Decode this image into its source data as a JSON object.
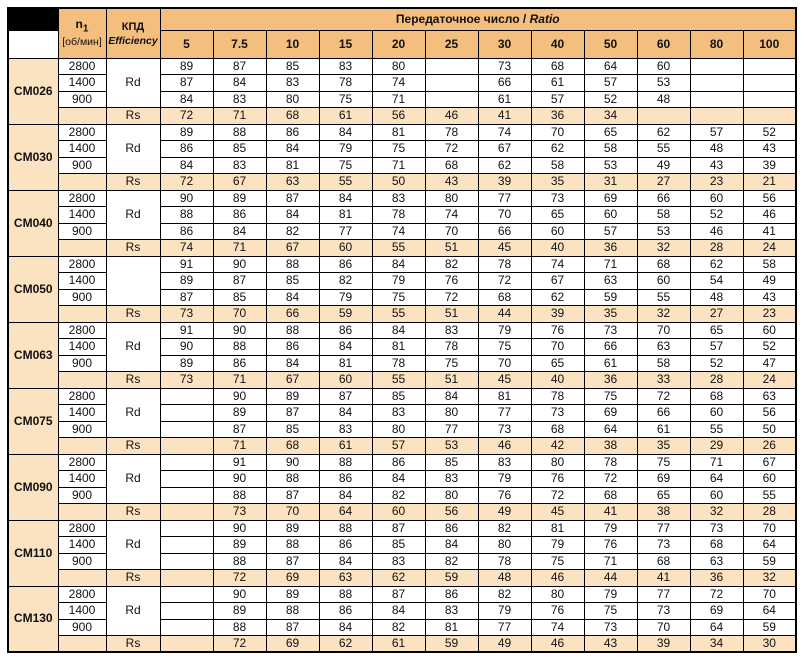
{
  "header": {
    "n1_main": "n",
    "n1_sub": "1",
    "n1_unit": "[об/мин]",
    "efficiency_ru": "КПД",
    "efficiency_en": "Efficiency",
    "ratio_title_ru": "Передаточное число / ",
    "ratio_title_en": "Ratio",
    "ratios": [
      "5",
      "7.5",
      "10",
      "15",
      "20",
      "25",
      "30",
      "40",
      "50",
      "60",
      "80",
      "100"
    ]
  },
  "colors": {
    "header_orange": "#F4BE7F",
    "light_orange": "#FBE2C1",
    "border": "#000000",
    "corner_fill": "#000000"
  },
  "speeds": [
    "2800",
    "1400",
    "900"
  ],
  "rs_label": "Rs",
  "blocks": [
    {
      "model": "CM026",
      "rd_label": "Rd",
      "rd": [
        [
          "89",
          "87",
          "85",
          "83",
          "80",
          "",
          "73",
          "68",
          "64",
          "60",
          "",
          ""
        ],
        [
          "87",
          "84",
          "83",
          "78",
          "74",
          "",
          "66",
          "61",
          "57",
          "53",
          "",
          ""
        ],
        [
          "84",
          "83",
          "80",
          "75",
          "71",
          "",
          "61",
          "57",
          "52",
          "48",
          "",
          ""
        ]
      ],
      "rs": [
        "72",
        "71",
        "68",
        "61",
        "56",
        "46",
        "41",
        "36",
        "34",
        "",
        "",
        ""
      ]
    },
    {
      "model": "CM030",
      "rd_label": "Rd",
      "rd": [
        [
          "89",
          "88",
          "86",
          "84",
          "81",
          "78",
          "74",
          "70",
          "65",
          "62",
          "57",
          "52"
        ],
        [
          "86",
          "85",
          "84",
          "79",
          "75",
          "72",
          "67",
          "62",
          "58",
          "55",
          "48",
          "43"
        ],
        [
          "84",
          "83",
          "81",
          "75",
          "71",
          "68",
          "62",
          "58",
          "53",
          "49",
          "43",
          "39"
        ]
      ],
      "rs": [
        "72",
        "67",
        "63",
        "55",
        "50",
        "43",
        "39",
        "35",
        "31",
        "27",
        "23",
        "21"
      ]
    },
    {
      "model": "CM040",
      "rd_label": "Rd",
      "rd": [
        [
          "90",
          "89",
          "87",
          "84",
          "83",
          "80",
          "77",
          "73",
          "69",
          "66",
          "60",
          "56"
        ],
        [
          "88",
          "86",
          "84",
          "81",
          "78",
          "74",
          "70",
          "65",
          "60",
          "58",
          "52",
          "46"
        ],
        [
          "86",
          "84",
          "82",
          "77",
          "74",
          "70",
          "66",
          "60",
          "57",
          "53",
          "46",
          "41"
        ]
      ],
      "rs": [
        "74",
        "71",
        "67",
        "60",
        "55",
        "51",
        "45",
        "40",
        "36",
        "32",
        "28",
        "24"
      ]
    },
    {
      "model": "CM050",
      "rd_label": "",
      "rd": [
        [
          "91",
          "90",
          "88",
          "86",
          "84",
          "82",
          "78",
          "74",
          "71",
          "68",
          "62",
          "58"
        ],
        [
          "89",
          "87",
          "85",
          "82",
          "79",
          "76",
          "72",
          "67",
          "63",
          "60",
          "54",
          "49"
        ],
        [
          "87",
          "85",
          "84",
          "79",
          "75",
          "72",
          "68",
          "62",
          "59",
          "55",
          "48",
          "43"
        ]
      ],
      "rs": [
        "73",
        "70",
        "66",
        "59",
        "55",
        "51",
        "44",
        "39",
        "35",
        "32",
        "27",
        "23"
      ]
    },
    {
      "model": "CM063",
      "rd_label": "Rd",
      "rd": [
        [
          "91",
          "90",
          "88",
          "86",
          "84",
          "83",
          "79",
          "76",
          "73",
          "70",
          "65",
          "60"
        ],
        [
          "90",
          "88",
          "86",
          "84",
          "81",
          "78",
          "75",
          "70",
          "66",
          "63",
          "57",
          "52"
        ],
        [
          "89",
          "86",
          "84",
          "81",
          "78",
          "75",
          "70",
          "65",
          "61",
          "58",
          "52",
          "47"
        ]
      ],
      "rs": [
        "73",
        "71",
        "67",
        "60",
        "55",
        "51",
        "45",
        "40",
        "36",
        "33",
        "28",
        "24"
      ]
    },
    {
      "model": "CM075",
      "rd_label": "Rd",
      "rd": [
        [
          "",
          "90",
          "89",
          "87",
          "85",
          "84",
          "81",
          "78",
          "75",
          "72",
          "68",
          "63"
        ],
        [
          "",
          "89",
          "87",
          "84",
          "83",
          "80",
          "77",
          "73",
          "69",
          "66",
          "60",
          "56"
        ],
        [
          "",
          "87",
          "85",
          "83",
          "80",
          "77",
          "73",
          "68",
          "64",
          "61",
          "55",
          "50"
        ]
      ],
      "rs": [
        "",
        "71",
        "68",
        "61",
        "57",
        "53",
        "46",
        "42",
        "38",
        "35",
        "29",
        "26"
      ]
    },
    {
      "model": "CM090",
      "rd_label": "Rd",
      "rd": [
        [
          "",
          "91",
          "90",
          "88",
          "86",
          "85",
          "83",
          "80",
          "78",
          "75",
          "71",
          "67"
        ],
        [
          "",
          "90",
          "88",
          "86",
          "84",
          "83",
          "79",
          "76",
          "72",
          "69",
          "64",
          "60"
        ],
        [
          "",
          "88",
          "87",
          "84",
          "82",
          "80",
          "76",
          "72",
          "68",
          "65",
          "60",
          "55"
        ]
      ],
      "rs": [
        "",
        "73",
        "70",
        "64",
        "60",
        "56",
        "49",
        "45",
        "41",
        "38",
        "32",
        "28"
      ]
    },
    {
      "model": "CM110",
      "rd_label": "Rd",
      "rd": [
        [
          "",
          "90",
          "89",
          "88",
          "87",
          "86",
          "82",
          "81",
          "79",
          "77",
          "73",
          "70"
        ],
        [
          "",
          "89",
          "88",
          "86",
          "85",
          "84",
          "80",
          "79",
          "76",
          "73",
          "68",
          "64"
        ],
        [
          "",
          "88",
          "87",
          "84",
          "83",
          "82",
          "78",
          "75",
          "71",
          "68",
          "63",
          "59"
        ]
      ],
      "rs": [
        "",
        "72",
        "69",
        "63",
        "62",
        "59",
        "48",
        "46",
        "44",
        "41",
        "36",
        "32"
      ]
    },
    {
      "model": "CM130",
      "rd_label": "Rd",
      "rd": [
        [
          "",
          "90",
          "89",
          "88",
          "87",
          "86",
          "82",
          "80",
          "79",
          "77",
          "72",
          "70"
        ],
        [
          "",
          "89",
          "88",
          "86",
          "84",
          "83",
          "79",
          "76",
          "75",
          "73",
          "69",
          "64"
        ],
        [
          "",
          "88",
          "87",
          "84",
          "82",
          "81",
          "77",
          "74",
          "73",
          "70",
          "64",
          "59"
        ]
      ],
      "rs": [
        "",
        "72",
        "69",
        "62",
        "61",
        "59",
        "49",
        "46",
        "43",
        "39",
        "34",
        "30"
      ]
    }
  ]
}
